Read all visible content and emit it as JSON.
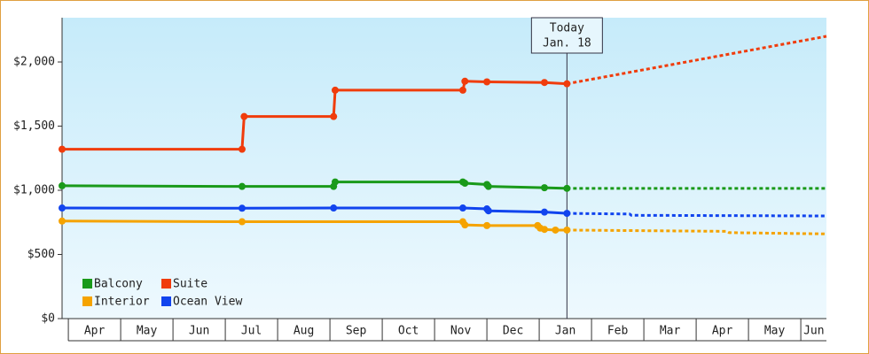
{
  "chart_data": {
    "type": "line",
    "legend": "lower left",
    "xlim": [
      -0.12,
      14.49
    ],
    "ylim": [
      0,
      2345
    ],
    "yticks": [
      {
        "value": 0,
        "label": "$0"
      },
      {
        "value": 500,
        "label": "$500"
      },
      {
        "value": 1000,
        "label": "$1,000"
      },
      {
        "value": 1500,
        "label": "$1,500"
      },
      {
        "value": 2000,
        "label": "$2,000"
      }
    ],
    "xticks": [
      {
        "value": 0.5,
        "label": "Apr"
      },
      {
        "value": 1.5,
        "label": "May"
      },
      {
        "value": 2.5,
        "label": "Jun"
      },
      {
        "value": 3.5,
        "label": "Jul"
      },
      {
        "value": 4.5,
        "label": "Aug"
      },
      {
        "value": 5.5,
        "label": "Sep"
      },
      {
        "value": 6.5,
        "label": "Oct"
      },
      {
        "value": 7.5,
        "label": "Nov"
      },
      {
        "value": 8.5,
        "label": "Dec"
      },
      {
        "value": 9.5,
        "label": "Jan"
      },
      {
        "value": 10.5,
        "label": "Feb"
      },
      {
        "value": 11.5,
        "label": "Mar"
      },
      {
        "value": 12.5,
        "label": "Apr"
      },
      {
        "value": 13.5,
        "label": "May"
      },
      {
        "value": 14.25,
        "label": "Jun"
      }
    ],
    "today": {
      "x": 9.53,
      "label": "Today",
      "date": "Jan. 18"
    },
    "series": [
      {
        "name": "Balcony",
        "color": "#1a9a1a",
        "x": [
          -0.12,
          3.32,
          5.07,
          5.1,
          7.54,
          7.58,
          8.0,
          8.03,
          9.1,
          9.53
        ],
        "values": [
          1035,
          1030,
          1030,
          1065,
          1065,
          1055,
          1045,
          1030,
          1020,
          1015
        ],
        "forecast_x": [
          9.53,
          14.49
        ],
        "forecast_values": [
          1015,
          1015
        ]
      },
      {
        "name": "Suite",
        "color": "#f03c0c",
        "x": [
          -0.12,
          3.32,
          3.36,
          5.07,
          5.1,
          7.54,
          7.58,
          8.0,
          9.1,
          9.53
        ],
        "values": [
          1320,
          1320,
          1575,
          1575,
          1780,
          1780,
          1850,
          1845,
          1840,
          1830
        ],
        "forecast_x": [
          9.53,
          14.49
        ],
        "forecast_values": [
          1830,
          2200
        ]
      },
      {
        "name": "Interior",
        "color": "#f5a300",
        "x": [
          -0.12,
          3.32,
          7.54,
          7.58,
          8.0,
          8.97,
          9.02,
          9.1,
          9.31,
          9.53
        ],
        "values": [
          760,
          755,
          755,
          730,
          725,
          725,
          705,
          695,
          690,
          690
        ],
        "forecast_x": [
          9.53,
          12.59,
          12.63,
          14.49
        ],
        "forecast_values": [
          690,
          680,
          670,
          660
        ]
      },
      {
        "name": "Ocean View",
        "color": "#1144ee",
        "x": [
          -0.12,
          3.32,
          5.07,
          7.54,
          8.0,
          8.03,
          9.1,
          9.53
        ],
        "values": [
          862,
          860,
          862,
          862,
          855,
          840,
          830,
          820
        ],
        "forecast_x": [
          9.53,
          10.73,
          10.76,
          14.49
        ],
        "forecast_values": [
          820,
          815,
          805,
          800
        ]
      }
    ]
  }
}
